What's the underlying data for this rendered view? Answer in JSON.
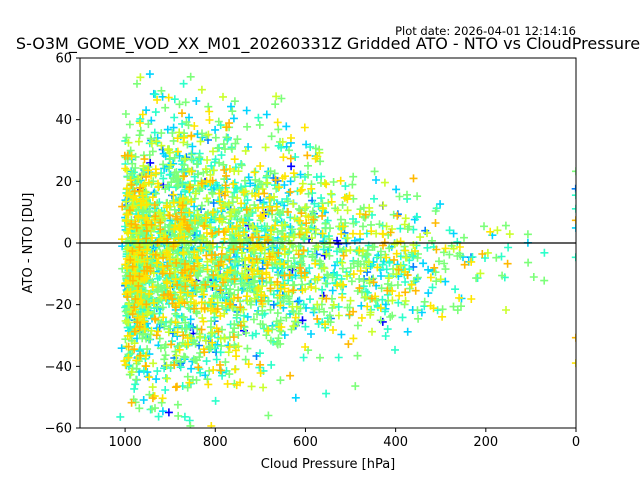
{
  "chart_data": {
    "type": "scatter",
    "title": "S-O3M_GOME_VOD_XX_M01_20260331Z Gridded ATO - NTO vs CloudPressure",
    "plot_date": "Plot date: 2026-04-01 12:14:16",
    "xlabel": "Cloud Pressure [hPa]",
    "ylabel": "ATO - NTO [DU]",
    "xlim": [
      1100,
      0
    ],
    "ylim": [
      -60,
      60
    ],
    "x_reversed": true,
    "xticks": [
      1000,
      800,
      600,
      400,
      200,
      0
    ],
    "yticks": [
      -60,
      -40,
      -20,
      0,
      20,
      40,
      60
    ],
    "xtick_labels": [
      "1000",
      "800",
      "600",
      "400",
      "200",
      "0"
    ],
    "ytick_labels": [
      "−60",
      "−40",
      "−20",
      "0",
      "20",
      "40",
      "60"
    ],
    "marker": "plus",
    "grid": false,
    "legend": "none",
    "reference_line_y": 0,
    "reference_line_color": "#000000",
    "point_colors": [
      "#0000ff",
      "#0080ff",
      "#00d4ff",
      "#2cffca",
      "#7cff79",
      "#caff2c",
      "#ffe600",
      "#ffb900"
    ],
    "point_color_weights": [
      0.01,
      0.03,
      0.12,
      0.22,
      0.34,
      0.1,
      0.12,
      0.06
    ],
    "density_profile": [
      {
        "p": 1000,
        "y_mean": -6,
        "y_spread": 22,
        "weight": 0.2
      },
      {
        "p": 900,
        "y_mean": -4,
        "y_spread": 24,
        "weight": 0.24
      },
      {
        "p": 800,
        "y_mean": -3,
        "y_spread": 22,
        "weight": 0.2
      },
      {
        "p": 700,
        "y_mean": -3,
        "y_spread": 20,
        "weight": 0.14
      },
      {
        "p": 600,
        "y_mean": -3,
        "y_spread": 18,
        "weight": 0.09
      },
      {
        "p": 500,
        "y_mean": -4,
        "y_spread": 15,
        "weight": 0.06
      },
      {
        "p": 400,
        "y_mean": -5,
        "y_spread": 12,
        "weight": 0.04
      },
      {
        "p": 300,
        "y_mean": -6,
        "y_spread": 10,
        "weight": 0.02
      },
      {
        "p": 200,
        "y_mean": -5,
        "y_spread": 8,
        "weight": 0.007
      },
      {
        "p": 100,
        "y_mean": -2,
        "y_spread": 7,
        "weight": 0.003
      },
      {
        "p": 0,
        "y_mean": -10,
        "y_spread": 25,
        "weight": 0.003
      }
    ],
    "point_count_estimate": 9000
  }
}
